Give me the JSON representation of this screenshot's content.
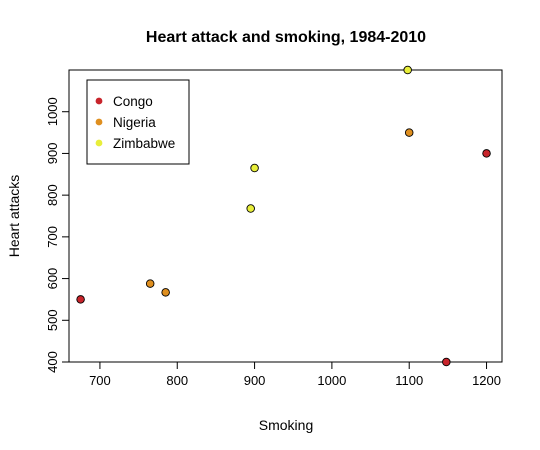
{
  "chart_data": {
    "type": "scatter",
    "title": "Heart attack and smoking, 1984-2010",
    "xlabel": "Smoking",
    "ylabel": "Heart attacks",
    "xlim": [
      660,
      1220
    ],
    "ylim": [
      400,
      1100
    ],
    "xticks": [
      700,
      800,
      900,
      1000,
      1100,
      1200
    ],
    "yticks": [
      400,
      500,
      600,
      700,
      800,
      900,
      1000
    ],
    "grid": false,
    "legend_position": "top-left",
    "series": [
      {
        "name": "Congo",
        "color": "#c8242b",
        "points": [
          {
            "x": 675,
            "y": 550
          },
          {
            "x": 1148,
            "y": 400
          },
          {
            "x": 1200,
            "y": 900
          }
        ]
      },
      {
        "name": "Nigeria",
        "color": "#df8f1f",
        "points": [
          {
            "x": 765,
            "y": 588
          },
          {
            "x": 785,
            "y": 567
          },
          {
            "x": 1100,
            "y": 950
          }
        ]
      },
      {
        "name": "Zimbabwe",
        "color": "#e8ee3a",
        "points": [
          {
            "x": 895,
            "y": 768
          },
          {
            "x": 900,
            "y": 865
          },
          {
            "x": 1098,
            "y": 1100
          }
        ]
      }
    ]
  }
}
